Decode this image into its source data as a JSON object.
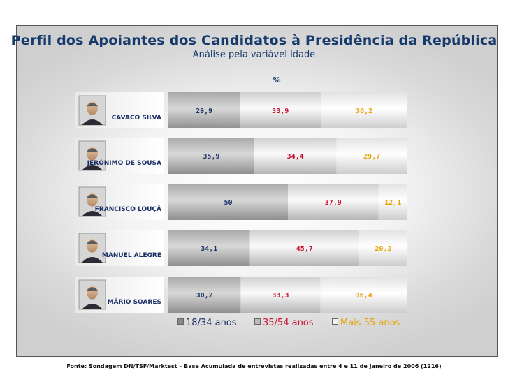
{
  "title": "Perfil dos Apoiantes dos Candidatos à Presidência da República",
  "subtitle": "Análise pela variável Idade",
  "unit_label": "%",
  "source": "Fonte: Sondagem DN/TSF/Marktest – Base Acumulada de entrevistas realizadas entre 4 e 11 de Janeiro de 2006 (1216)",
  "legend": [
    {
      "label": "18/34 anos",
      "color": "#1a2f66",
      "icon": "gray-square-icon"
    },
    {
      "label": "35/54 anos",
      "color": "#c8102e",
      "icon": "light-gray-square-icon"
    },
    {
      "label": "Mais 55 anos",
      "color": "#e8a200",
      "icon": "white-square-icon"
    }
  ],
  "chart_data": {
    "type": "bar",
    "stacked": true,
    "orientation": "horizontal",
    "categories": [
      "CAVACO SILVA",
      "JERÓNIMO DE SOUSA",
      "FRANCISCO LOUÇÃ",
      "MANUEL ALEGRE",
      "MÁRIO SOARES"
    ],
    "series": [
      {
        "name": "18/34 anos",
        "values": [
          29.9,
          35.9,
          50,
          34.1,
          30.2
        ],
        "labels": [
          "29,9",
          "35,9",
          "50",
          "34,1",
          "30,2"
        ],
        "color": "#1a2f66"
      },
      {
        "name": "35/54 anos",
        "values": [
          33.9,
          34.4,
          37.9,
          45.7,
          33.3
        ],
        "labels": [
          "33,9",
          "34,4",
          "37,9",
          "45,7",
          "33,3"
        ],
        "color": "#c8102e"
      },
      {
        "name": "Mais 55 anos",
        "values": [
          36.2,
          29.7,
          12.1,
          20.2,
          36.4
        ],
        "labels": [
          "36,2",
          "29,7",
          "12,1",
          "20,2",
          "36,4"
        ],
        "color": "#e8a200"
      }
    ],
    "xlim": [
      0,
      100
    ],
    "grid": false,
    "legend_position": "bottom"
  }
}
